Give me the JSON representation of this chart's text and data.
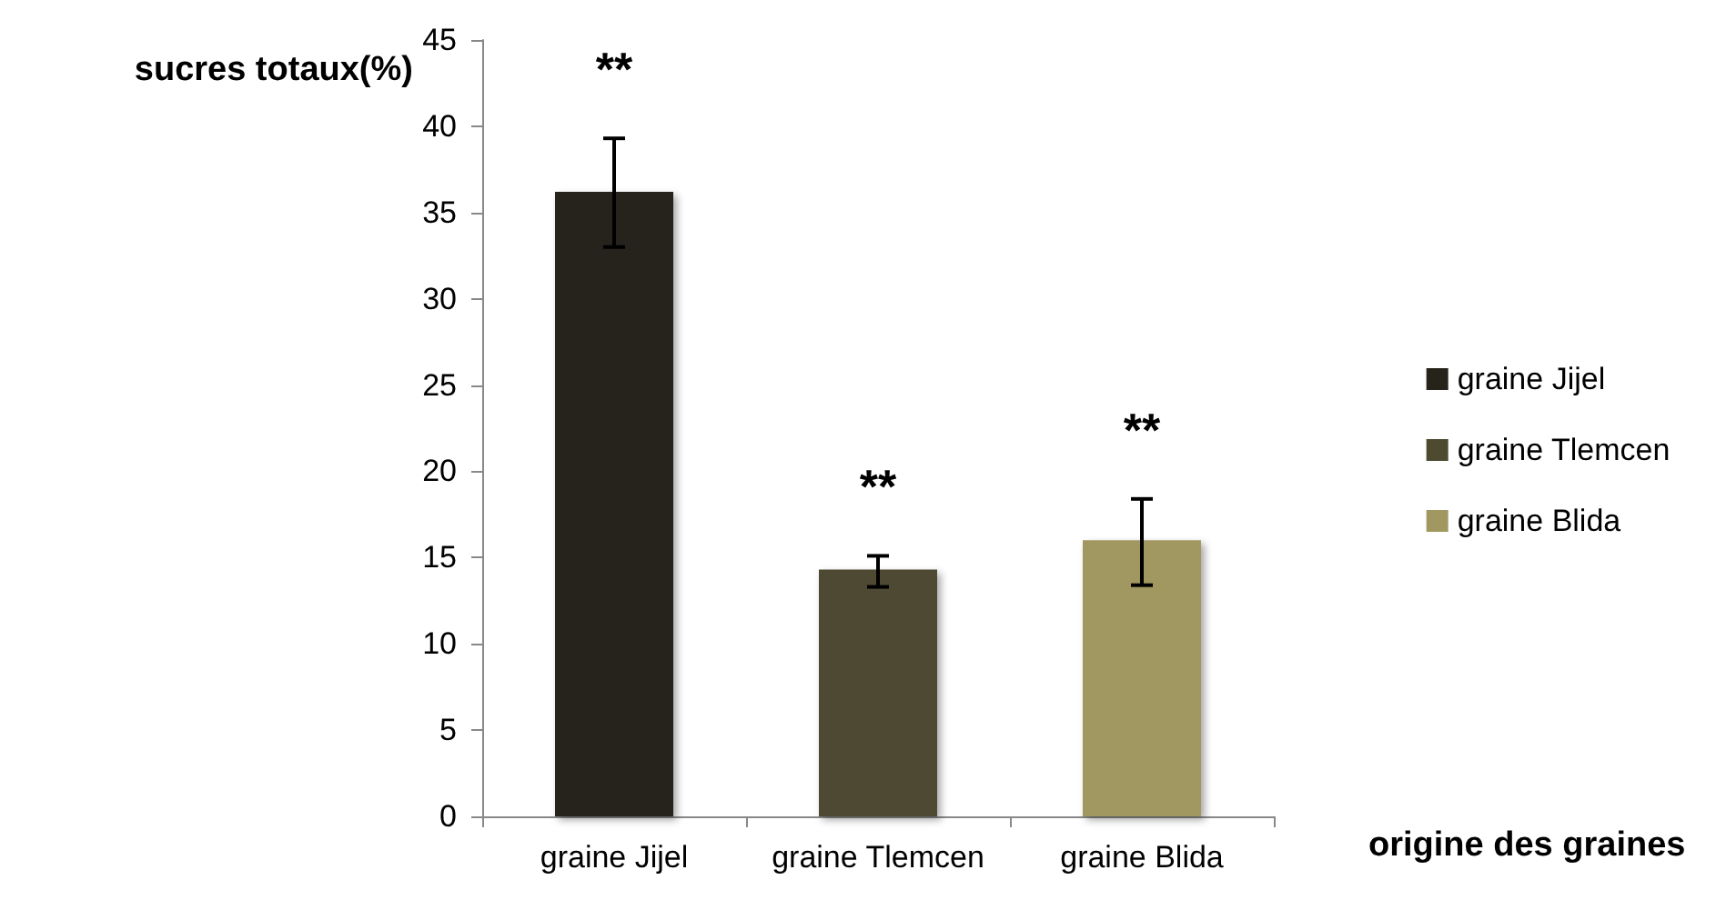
{
  "chart_data": {
    "type": "bar",
    "ylabel": "sucres totaux(%)",
    "xlabel": "origine des graines",
    "categories": [
      "graine Jijel",
      "graine Tlemcen",
      "graine Blida"
    ],
    "series": [
      {
        "name": "graine Jijel",
        "color": "#25231a",
        "values": [
          36.2,
          null,
          null
        ],
        "errors": [
          [
            33.0,
            39.3
          ],
          null,
          null
        ]
      },
      {
        "name": "graine Tlemcen",
        "color": "#4d4a30",
        "values": [
          null,
          14.3,
          null
        ],
        "errors": [
          null,
          [
            13.3,
            15.1
          ],
          null
        ]
      },
      {
        "name": "graine Blida",
        "color": "#a09860",
        "values": [
          null,
          null,
          16.0
        ],
        "errors": [
          null,
          null,
          [
            13.4,
            18.4
          ]
        ]
      }
    ],
    "ylim": [
      0,
      45
    ],
    "yticks": [
      0,
      5,
      10,
      15,
      20,
      25,
      30,
      35,
      40,
      45
    ],
    "grid": false,
    "legend": "right",
    "annotations": [
      "**",
      "**",
      "**"
    ]
  }
}
